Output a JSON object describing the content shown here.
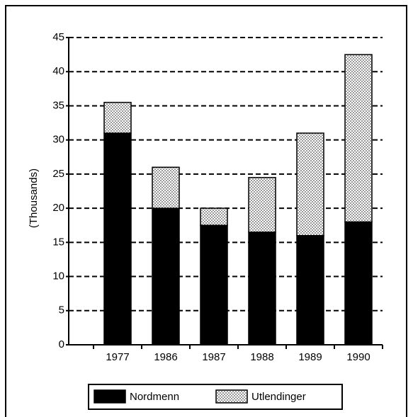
{
  "chart_data": {
    "type": "stacked_bar",
    "y_label": "(Thousands)",
    "categories": [
      "1977",
      "1986",
      "1987",
      "1988",
      "1989",
      "1990"
    ],
    "series": [
      {
        "name": "Nordmenn",
        "color": "#000000",
        "values": [
          31,
          20,
          17.5,
          16.5,
          16,
          18
        ]
      },
      {
        "name": "Utlendinger",
        "color": "#9a9a9a",
        "values": [
          4.5,
          6,
          2.5,
          8,
          15,
          24.5
        ]
      }
    ],
    "ylim": [
      0,
      45
    ],
    "yticks": [
      0,
      5,
      10,
      15,
      20,
      25,
      30,
      35,
      40,
      45
    ],
    "grid": true
  }
}
